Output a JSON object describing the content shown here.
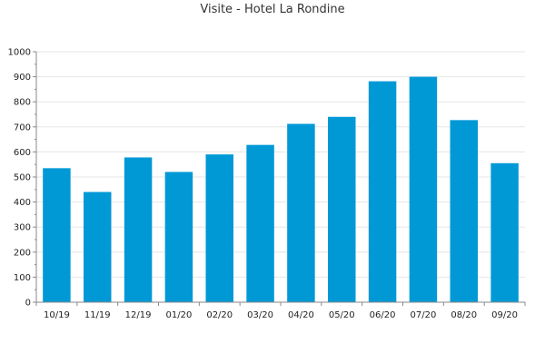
{
  "chart_data": {
    "type": "bar",
    "title": "Visite - Hotel La Rondine",
    "xlabel": "",
    "ylabel": "",
    "categories": [
      "10/19",
      "11/19",
      "12/19",
      "01/20",
      "02/20",
      "03/20",
      "04/20",
      "05/20",
      "06/20",
      "07/20",
      "08/20",
      "09/20"
    ],
    "values": [
      535,
      440,
      578,
      520,
      590,
      628,
      712,
      740,
      882,
      900,
      727,
      555
    ],
    "ylim": [
      0,
      1000
    ],
    "yticks": [
      0,
      100,
      200,
      300,
      400,
      500,
      600,
      700,
      800,
      900,
      1000
    ],
    "grid": true,
    "legend": "none",
    "bar_color": "#0099d6",
    "grid_color": "#e6e6e6",
    "axis_color": "#888888"
  }
}
